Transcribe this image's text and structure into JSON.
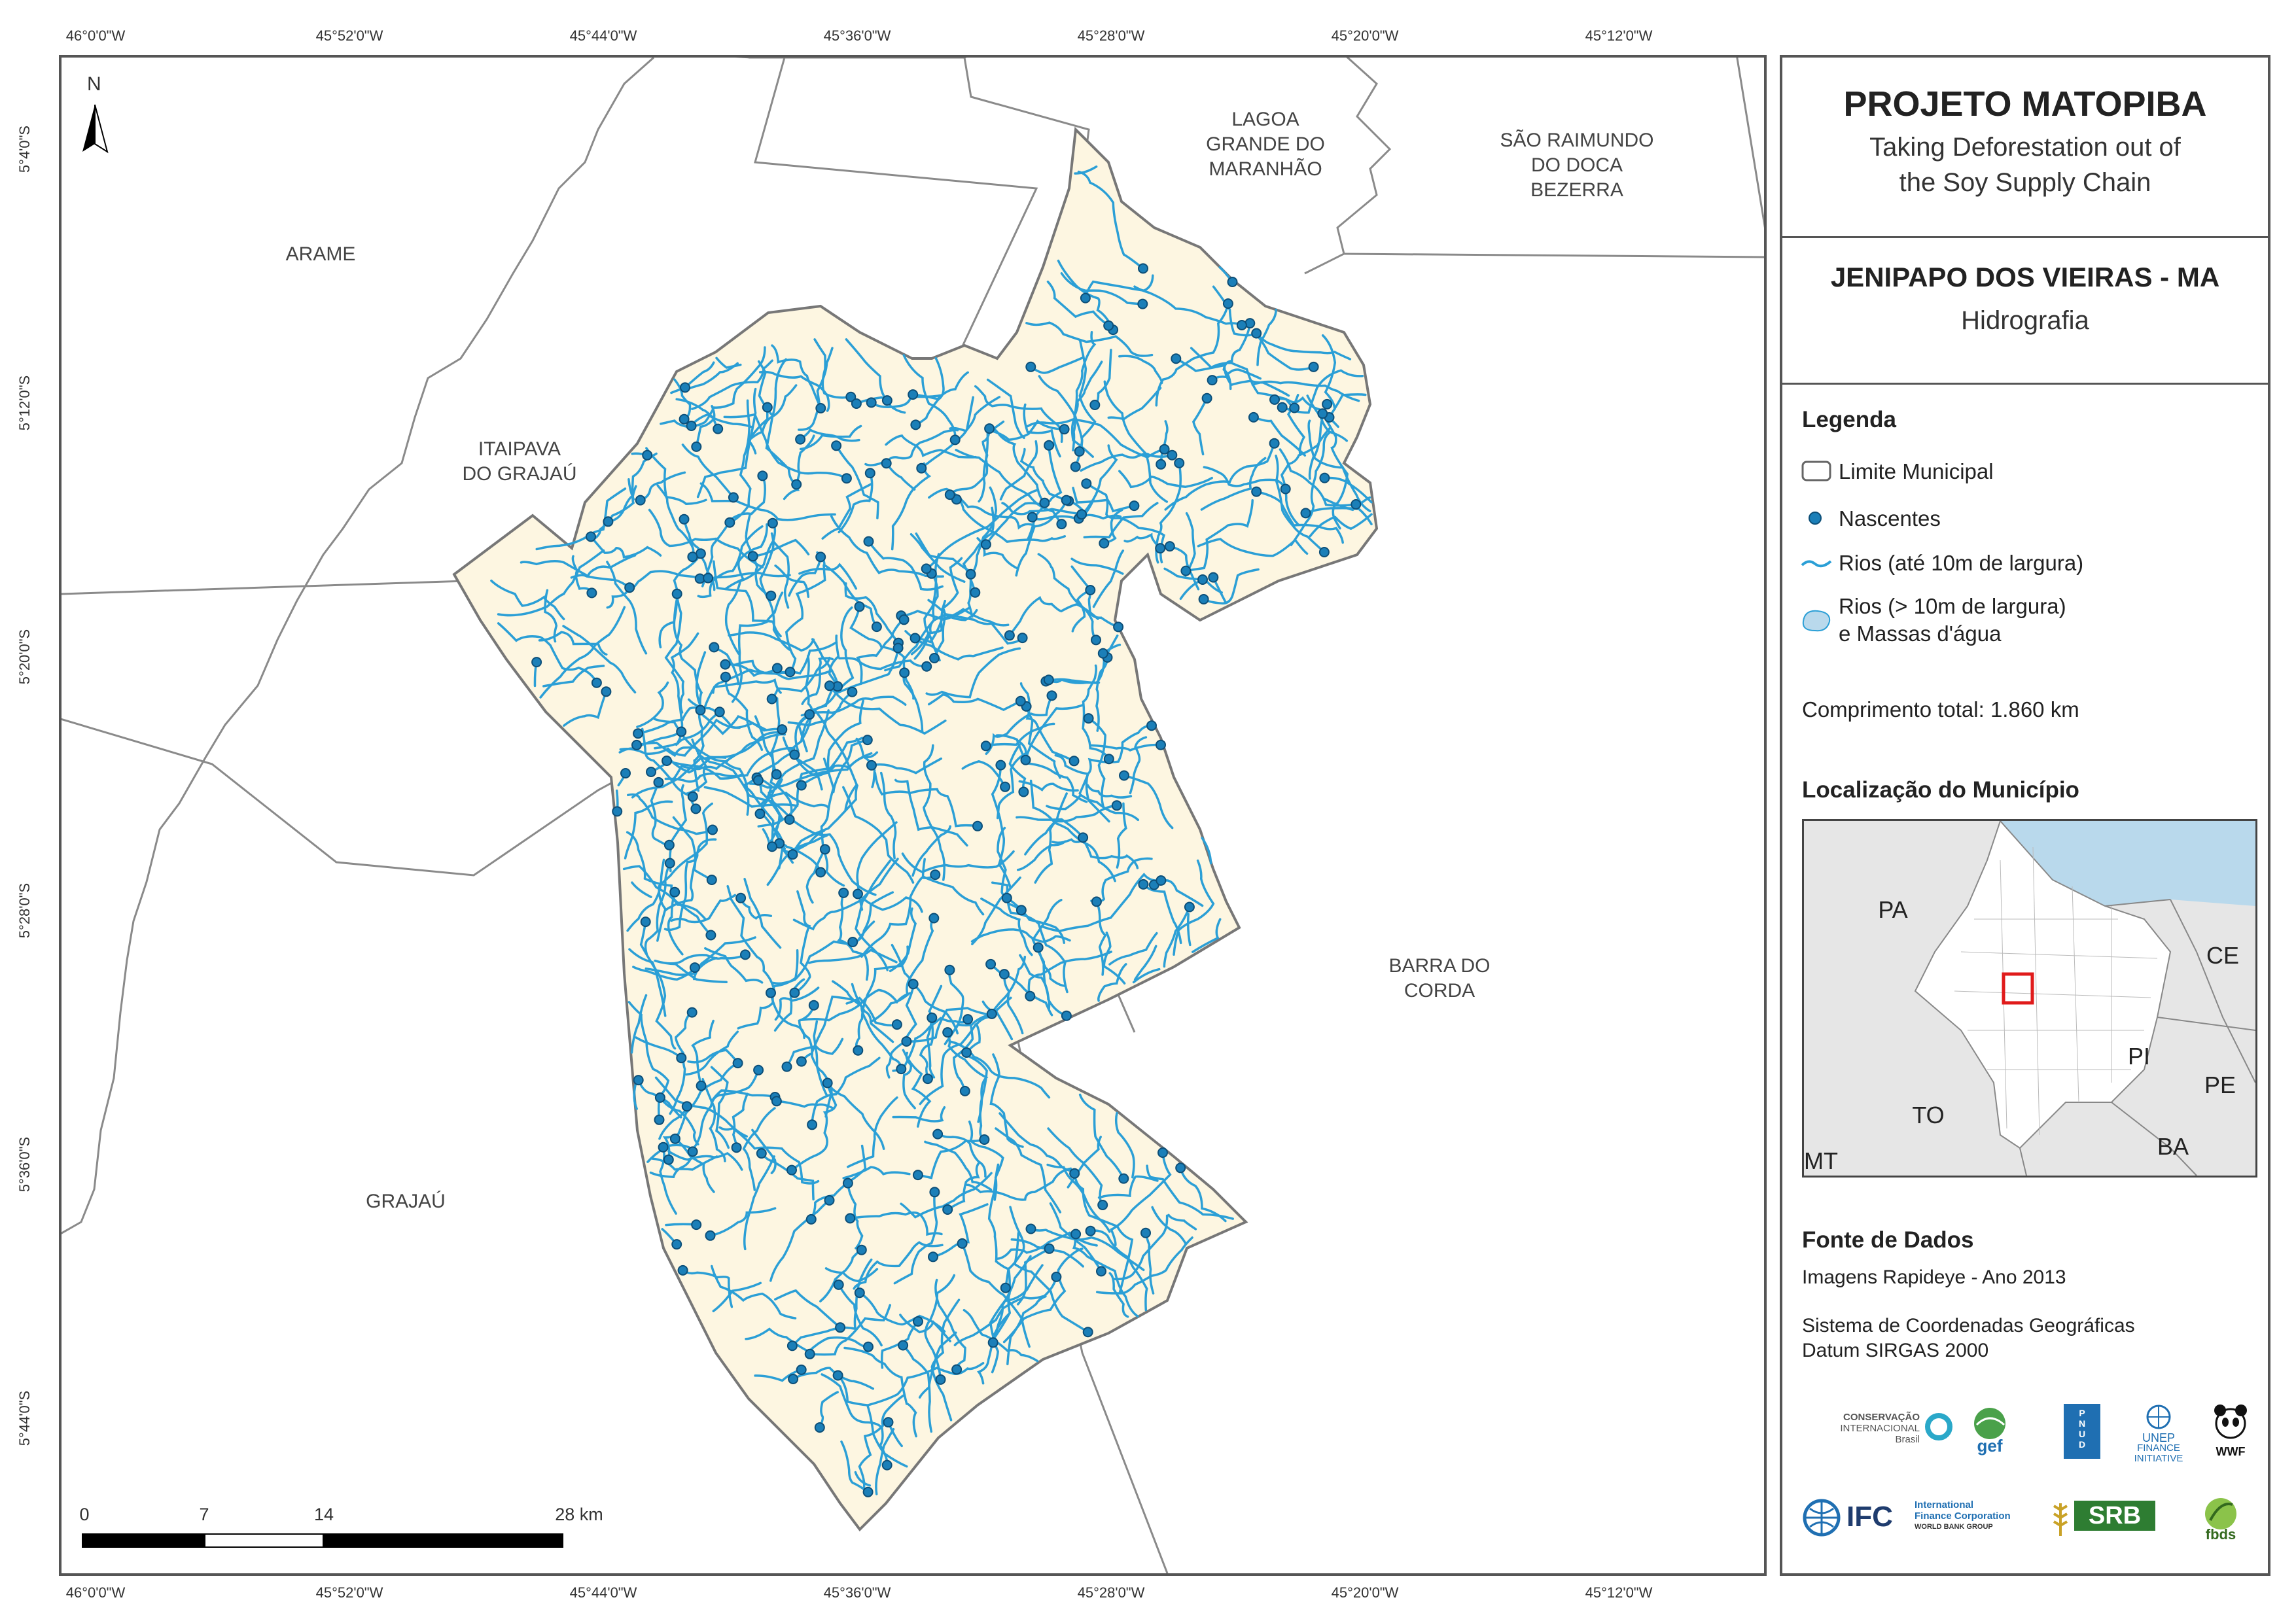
{
  "coords": {
    "longitude": [
      "46°0'0\"W",
      "45°52'0\"W",
      "45°44'0\"W",
      "45°36'0\"W",
      "45°28'0\"W",
      "45°20'0\"W",
      "45°12'0\"W"
    ],
    "latitude": [
      "5°4'0\"S",
      "5°12'0\"S",
      "5°20'0\"S",
      "5°28'0\"S",
      "5°36'0\"S",
      "5°44'0\"S"
    ]
  },
  "municipalities": {
    "arame": "ARAME",
    "itaipava_1": "ITAIPAVA",
    "itaipava_2": "DO GRAJAÚ",
    "lagoa_1": "LAGOA",
    "lagoa_2": "GRANDE DO",
    "lagoa_3": "MARANHÃO",
    "sao_1": "SÃO RAIMUNDO",
    "sao_2": "DO DOCA",
    "sao_3": "BEZERRA",
    "barra_1": "BARRA DO",
    "barra_2": "CORDA",
    "grajau": "GRAJAÚ"
  },
  "north_arrow": "N",
  "scale_bar": {
    "labels": [
      "0",
      "7",
      "14",
      "28 km"
    ]
  },
  "panel": {
    "project_title": "PROJETO MATOPIBA",
    "subtitle_1": "Taking Deforestation out of",
    "subtitle_2": "the Soy Supply Chain",
    "map_title": "JENIPAPO DOS VIEIRAS - MA",
    "map_theme": "Hidrografia",
    "legend_title": "Legenda",
    "legend": {
      "limite": "Limite Municipal",
      "nascentes": "Nascentes",
      "rios_small": "Rios (até 10m de largura)",
      "rios_big_1": "Rios (> 10m de largura)",
      "rios_big_2": "e Massas d'água"
    },
    "total_length": "Comprimento total:  1.860 km",
    "location_title": "Localização do Município",
    "inset_states": [
      "PA",
      "CE",
      "PI",
      "PE",
      "TO",
      "BA",
      "MT"
    ],
    "sources_title": "Fonte de Dados",
    "source_1": "Imagens Rapideye - Ano 2013",
    "source_2": "Sistema de Coordenadas Geográficas",
    "source_3": "Datum SIRGAS 2000",
    "logos": {
      "ci_1": "CONSERVAÇÃO",
      "ci_2": "INTERNACIONAL",
      "ci_3": "Brasil",
      "gef": "gef",
      "pnud": "PNUD",
      "unep_1": "UNEP",
      "unep_2": "FINANCE",
      "unep_3": "INITIATIVE",
      "wwf": "WWF",
      "ifc": "IFC",
      "ifc_sub_1": "International",
      "ifc_sub_2": "Finance Corporation",
      "ifc_sub_3": "WORLD BANK GROUP",
      "srb": "SRB",
      "fbds": "fbds"
    }
  },
  "colors": {
    "river": "#2b9fd6",
    "spring": "#1b7fb8",
    "municipality_fill": "#fdf6e1",
    "border": "#777777",
    "inset_sea": "#b9d9ec"
  }
}
